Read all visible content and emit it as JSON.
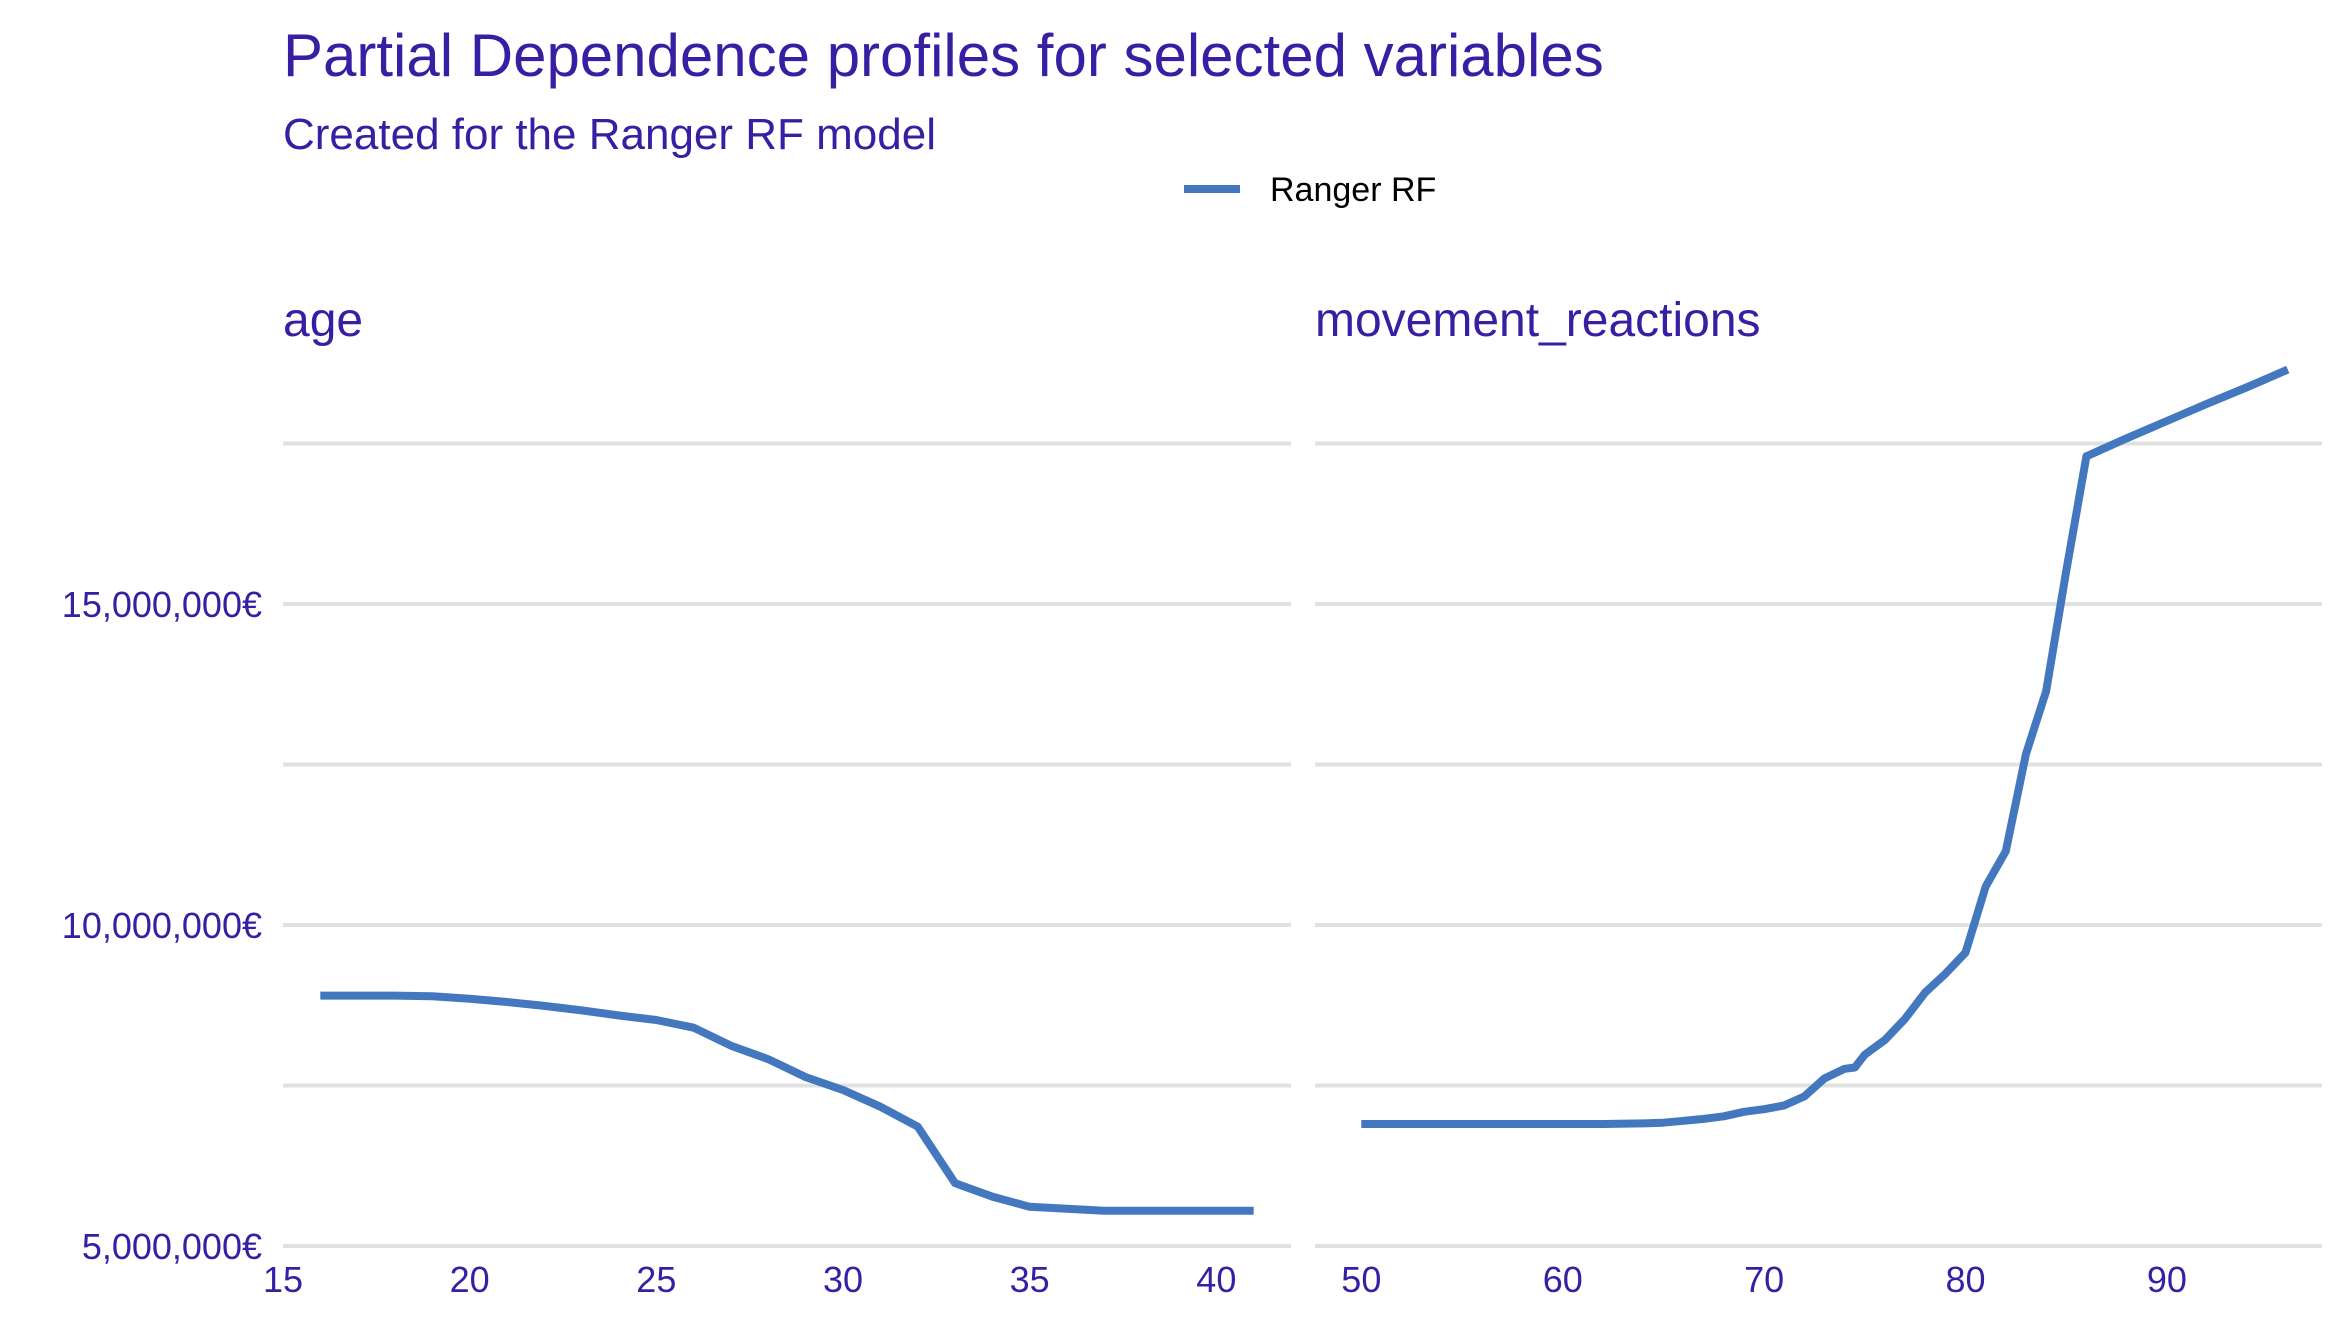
{
  "colors": {
    "text": "#371EA3",
    "line": "#4378BF",
    "grid": "#E1E1E1",
    "legend_text": "#000000"
  },
  "chart_data": {
    "type": "line",
    "title": "Partial Dependence profiles for selected variables",
    "subtitle": "Created for the Ranger RF model",
    "legend": {
      "placement": "top",
      "entries": [
        "Ranger RF"
      ]
    },
    "grid": true,
    "y_axis": {
      "ylim": [
        5000000,
        18800000
      ],
      "gridlines": [
        5000000,
        7500000,
        10000000,
        12500000,
        15000000,
        17500000
      ],
      "ticks": [
        {
          "value": 5000000,
          "label": "5,000,000€"
        },
        {
          "value": 10000000,
          "label": "10,000,000€"
        },
        {
          "value": 15000000,
          "label": "15,000,000€"
        }
      ]
    },
    "panels": [
      {
        "label": "age",
        "xlim": [
          15,
          42
        ],
        "x_ticks": [
          {
            "value": 15,
            "label": "15"
          },
          {
            "value": 20,
            "label": "20"
          },
          {
            "value": 25,
            "label": "25"
          },
          {
            "value": 30,
            "label": "30"
          },
          {
            "value": 35,
            "label": "35"
          },
          {
            "value": 40,
            "label": "40"
          }
        ],
        "series": [
          {
            "name": "Ranger RF",
            "x": [
              16,
              17,
              18,
              19,
              20,
              21,
              22,
              23,
              24,
              25,
              26,
              27,
              28,
              29,
              30,
              31,
              32,
              33,
              34,
              35,
              36,
              37,
              38,
              39,
              40,
              41
            ],
            "y": [
              8900000,
              8900000,
              8900000,
              8890000,
              8850000,
              8800000,
              8740000,
              8670000,
              8590000,
              8520000,
              8400000,
              8120000,
              7910000,
              7630000,
              7430000,
              7170000,
              6860000,
              5980000,
              5770000,
              5610000,
              5580000,
              5550000,
              5550000,
              5550000,
              5550000,
              5550000
            ]
          }
        ]
      },
      {
        "label": "movement_reactions",
        "xlim": [
          47.7,
          97.7
        ],
        "x_ticks": [
          {
            "value": 50,
            "label": "50"
          },
          {
            "value": 60,
            "label": "60"
          },
          {
            "value": 70,
            "label": "70"
          },
          {
            "value": 80,
            "label": "80"
          },
          {
            "value": 90,
            "label": "90"
          }
        ],
        "series": [
          {
            "name": "Ranger RF",
            "x": [
              50,
              55,
              60,
              62,
              64,
              65,
              66,
              67,
              68,
              69,
              70,
              71,
              72,
              73,
              74,
              74.5,
              75,
              76,
              77,
              78,
              79,
              80,
              81,
              82,
              83,
              84,
              85,
              86,
              88,
              90,
              92,
              94,
              96
            ],
            "y": [
              6900000,
              6900000,
              6900000,
              6900000,
              6910000,
              6920000,
              6950000,
              6980000,
              7020000,
              7090000,
              7130000,
              7190000,
              7330000,
              7610000,
              7760000,
              7780000,
              7980000,
              8210000,
              8540000,
              8950000,
              9240000,
              9570000,
              10600000,
              11150000,
              12660000,
              13640000,
              15510000,
              17300000,
              17580000,
              17850000,
              18120000,
              18380000,
              18650000
            ]
          }
        ]
      }
    ]
  }
}
